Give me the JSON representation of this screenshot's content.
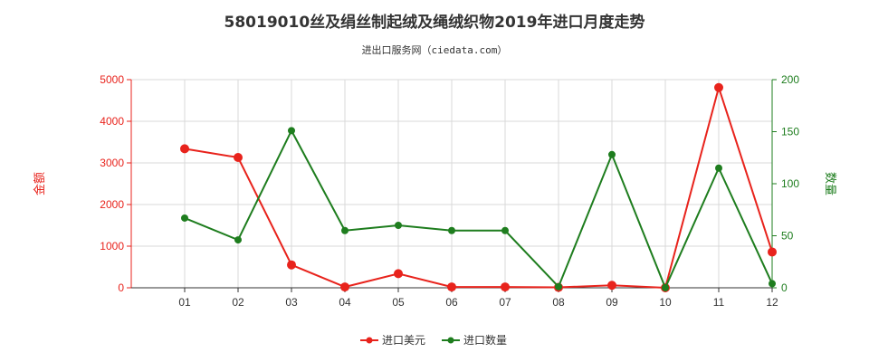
{
  "chart_data": {
    "type": "line",
    "title": "58019010丝及绢丝制起绒及绳绒织物2019年进口月度走势",
    "subtitle": "进出口服务网（ciedata.com）",
    "categories": [
      "01",
      "02",
      "03",
      "04",
      "05",
      "06",
      "07",
      "08",
      "09",
      "10",
      "11",
      "12"
    ],
    "left_axis": {
      "label": "金额",
      "range": [
        0,
        5000
      ],
      "ticks": [
        "0",
        "1000",
        "2000",
        "3000",
        "4000",
        "5000"
      ],
      "color": "#e8231c"
    },
    "right_axis": {
      "label": "数量",
      "range": [
        0,
        200
      ],
      "ticks": [
        "0",
        "50",
        "100",
        "150",
        "200"
      ],
      "color": "#1e7d1e"
    },
    "series": [
      {
        "name": "进口美元",
        "axis": "left",
        "color": "#e8231c",
        "values": [
          3340,
          3130,
          550,
          20,
          340,
          20,
          20,
          10,
          60,
          0,
          4810,
          860
        ]
      },
      {
        "name": "进口数量",
        "axis": "right",
        "color": "#1e7d1e",
        "values": [
          67,
          46,
          151,
          55,
          60,
          55,
          55,
          1,
          128,
          0,
          115,
          4
        ]
      }
    ],
    "grid": true,
    "legend_position": "bottom-center"
  }
}
